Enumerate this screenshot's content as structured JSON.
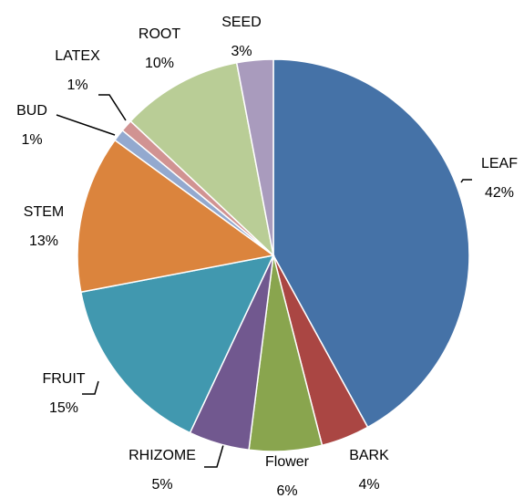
{
  "chart_data": {
    "type": "pie",
    "categories": [
      "LEAF",
      "BARK",
      "Flower",
      "RHIZOME",
      "FRUIT",
      "STEM",
      "BUD",
      "LATEX",
      "ROOT",
      "SEED"
    ],
    "values": [
      42,
      4,
      6,
      5,
      15,
      13,
      1,
      1,
      10,
      3
    ],
    "value_labels": [
      "42%",
      "4%",
      "6%",
      "5%",
      "15%",
      "13%",
      "1%",
      "1%",
      "10%",
      "3%"
    ],
    "colors": [
      "#4572a7",
      "#aa4643",
      "#89a54e",
      "#71588f",
      "#4198af",
      "#db843d",
      "#93a9cf",
      "#d19392",
      "#b9cd96",
      "#a99bbd"
    ]
  }
}
